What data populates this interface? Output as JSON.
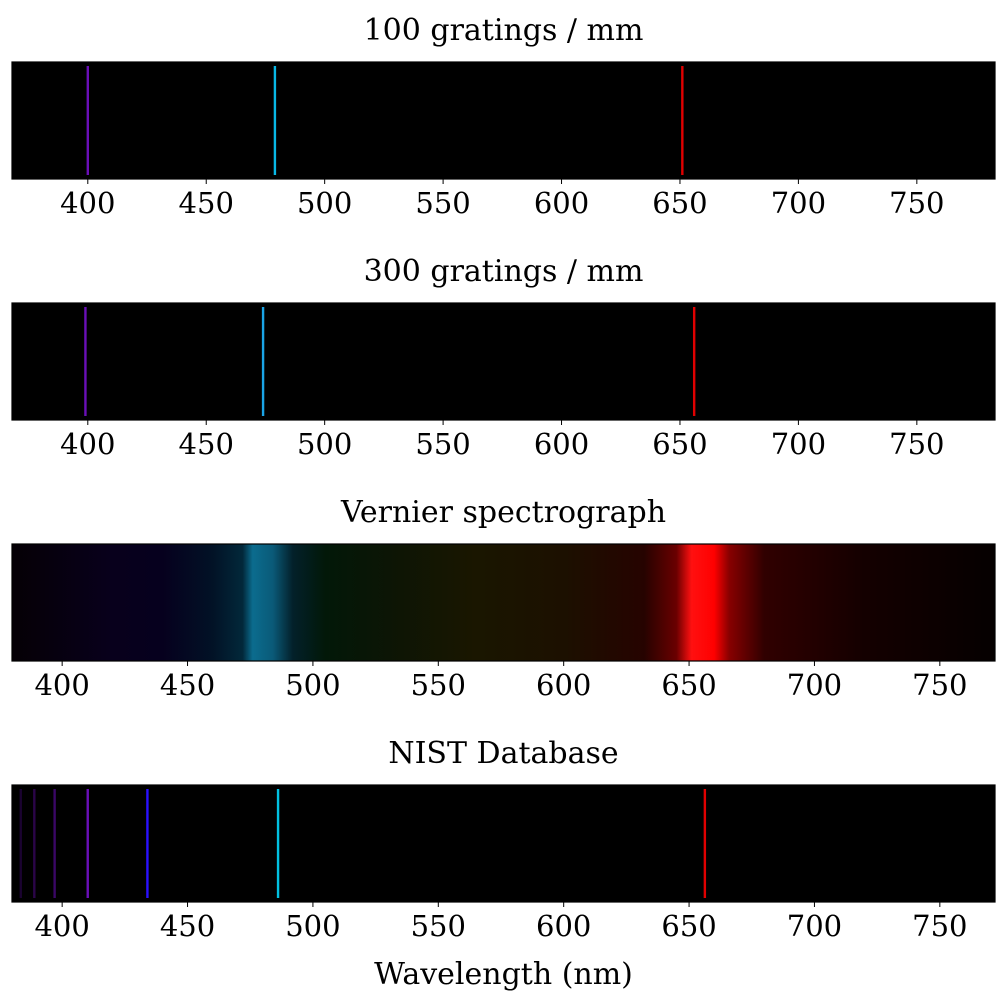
{
  "chart_data": [
    {
      "type": "spectrum",
      "title": "100 gratings / mm",
      "xlim": [
        368,
        783
      ],
      "xticks": [
        400,
        450,
        500,
        550,
        600,
        650,
        700,
        750
      ],
      "background": "#000000",
      "lines": [
        {
          "wavelength": 400,
          "color": "#6a0fb8"
        },
        {
          "wavelength": 479,
          "color": "#08b8e6"
        },
        {
          "wavelength": 651,
          "color": "#e00000"
        }
      ]
    },
    {
      "type": "spectrum",
      "title": "300 gratings / mm",
      "xlim": [
        368,
        783
      ],
      "xticks": [
        400,
        450,
        500,
        550,
        600,
        650,
        700,
        750
      ],
      "background": "#000000",
      "lines": [
        {
          "wavelength": 399,
          "color": "#6a0fb8"
        },
        {
          "wavelength": 474,
          "color": "#1aa4e6"
        },
        {
          "wavelength": 656,
          "color": "#e00000"
        }
      ]
    },
    {
      "type": "continuous-spectrum",
      "title": "Vernier spectrograph",
      "xlim": [
        380,
        772
      ],
      "xticks": [
        400,
        450,
        500,
        550,
        600,
        650,
        700,
        750
      ],
      "background": "#000000",
      "regions": [
        {
          "wavelength": 380,
          "color": "#050005"
        },
        {
          "wavelength": 420,
          "color": "#08001c"
        },
        {
          "wavelength": 440,
          "color": "#06001e"
        },
        {
          "wavelength": 460,
          "color": "#021226"
        },
        {
          "wavelength": 472,
          "color": "#02283a"
        },
        {
          "wavelength": 476,
          "color": "#0b6c8e"
        },
        {
          "wavelength": 484,
          "color": "#0a5a78"
        },
        {
          "wavelength": 492,
          "color": "#03202a"
        },
        {
          "wavelength": 505,
          "color": "#021808"
        },
        {
          "wavelength": 530,
          "color": "#0c1505"
        },
        {
          "wavelength": 565,
          "color": "#1a1600"
        },
        {
          "wavelength": 600,
          "color": "#1c1000"
        },
        {
          "wavelength": 632,
          "color": "#260300"
        },
        {
          "wavelength": 645,
          "color": "#6a0000"
        },
        {
          "wavelength": 651,
          "color": "#ff1010"
        },
        {
          "wavelength": 660,
          "color": "#ff0000"
        },
        {
          "wavelength": 666,
          "color": "#880000"
        },
        {
          "wavelength": 680,
          "color": "#300000"
        },
        {
          "wavelength": 720,
          "color": "#140000"
        },
        {
          "wavelength": 772,
          "color": "#050000"
        }
      ]
    },
    {
      "type": "spectrum",
      "title": "NIST Database",
      "xlim": [
        380,
        772
      ],
      "xticks": [
        400,
        450,
        500,
        550,
        600,
        650,
        700,
        750
      ],
      "xlabel": "Wavelength (nm)",
      "background": "#000000",
      "lines": [
        {
          "wavelength": 383.5,
          "color": "#1a0330"
        },
        {
          "wavelength": 388.9,
          "color": "#2a0548"
        },
        {
          "wavelength": 397.0,
          "color": "#3a0766"
        },
        {
          "wavelength": 410.2,
          "color": "#6a0fb8"
        },
        {
          "wavelength": 434.0,
          "color": "#2a10ff"
        },
        {
          "wavelength": 486.1,
          "color": "#00c0e0"
        },
        {
          "wavelength": 656.3,
          "color": "#e00000"
        }
      ]
    }
  ]
}
